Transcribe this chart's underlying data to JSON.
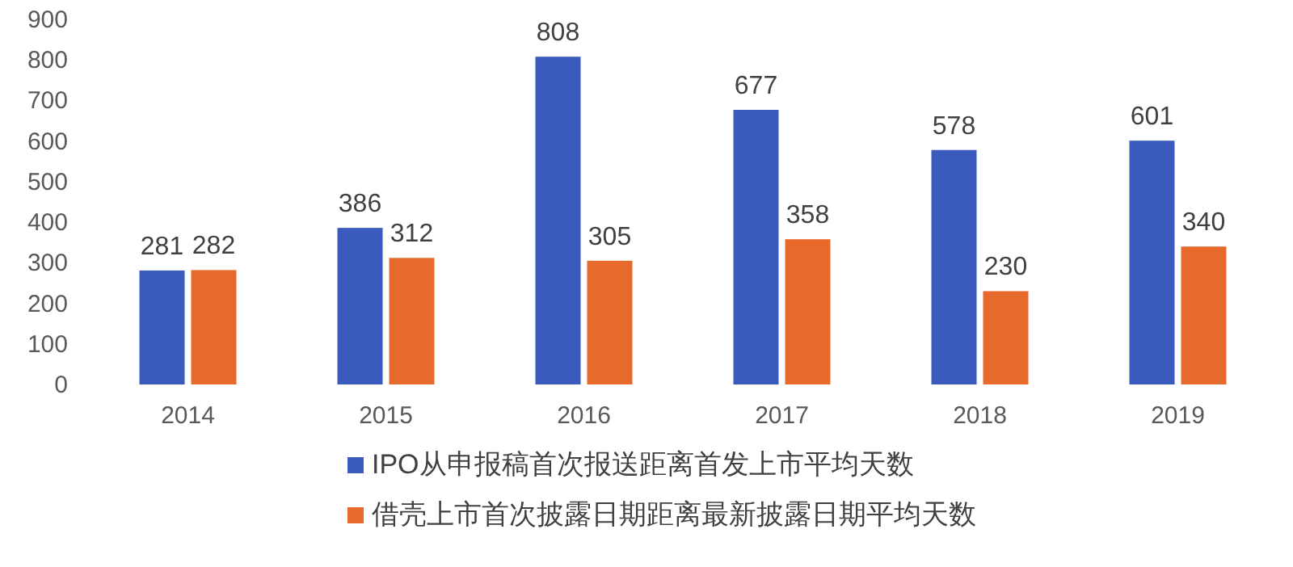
{
  "chart_data": {
    "type": "bar",
    "categories": [
      "2014",
      "2015",
      "2016",
      "2017",
      "2018",
      "2019"
    ],
    "series": [
      {
        "name": "IPO从申报稿首次报送距离首发上市平均天数",
        "color": "#3a5bbd",
        "values": [
          281,
          386,
          808,
          677,
          578,
          601
        ]
      },
      {
        "name": "借壳上市首次披露日期距离最新披露日期平均天数",
        "color": "#e8692c",
        "values": [
          282,
          312,
          305,
          358,
          230,
          340
        ]
      }
    ],
    "ylim": [
      0,
      900
    ],
    "yticks": [
      0,
      100,
      200,
      300,
      400,
      500,
      600,
      700,
      800,
      900
    ],
    "data_labels": true,
    "legend": "bottom",
    "grid": false
  }
}
